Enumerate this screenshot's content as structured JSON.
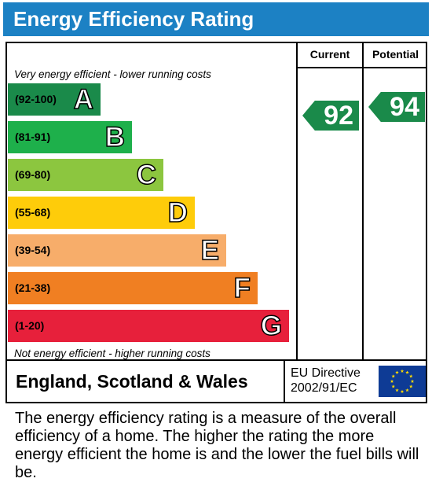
{
  "header": {
    "title": "Energy Efficiency Rating"
  },
  "columns": {
    "current": "Current",
    "potential": "Potential"
  },
  "notes": {
    "top": "Very energy efficient - lower running costs",
    "bottom": "Not energy efficient - higher running costs"
  },
  "bands": [
    {
      "range": "(92-100)",
      "letter": "A",
      "color": "#1a8a4a"
    },
    {
      "range": "(81-91)",
      "letter": "B",
      "color": "#1eb04b"
    },
    {
      "range": "(69-80)",
      "letter": "C",
      "color": "#8cc63f"
    },
    {
      "range": "(55-68)",
      "letter": "D",
      "color": "#fecc0a"
    },
    {
      "range": "(39-54)",
      "letter": "E",
      "color": "#f7ad6a"
    },
    {
      "range": "(21-38)",
      "letter": "F",
      "color": "#f07f22"
    },
    {
      "range": "(1-20)",
      "letter": "G",
      "color": "#e7203b"
    }
  ],
  "ratings": {
    "current": "92",
    "potential": "94",
    "color": "#1a8a4a"
  },
  "footer": {
    "region": "England, Scotland & Wales",
    "directive_line1": "EU Directive",
    "directive_line2": "2002/91/EC",
    "flag_icon": "eu-flag-icon"
  },
  "description": "The energy efficiency rating is a measure of the overall efficiency of a home. The higher the rating the more energy efficient the home is and the lower the fuel bills will be."
}
